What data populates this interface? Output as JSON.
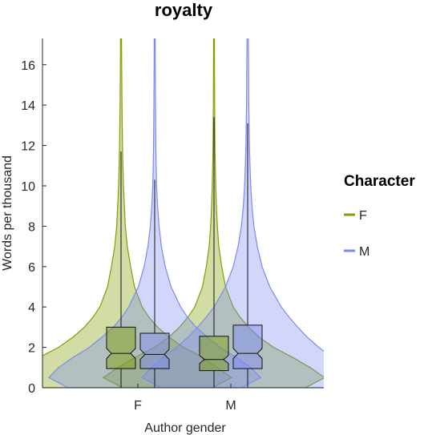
{
  "chart_data": {
    "type": "violin",
    "title": "royalty",
    "xlabel": "Author gender",
    "ylabel": "Words per thousand",
    "ylim": [
      0,
      17.3
    ],
    "yticks": [
      0,
      2,
      4,
      6,
      8,
      10,
      12,
      14,
      16
    ],
    "categories": [
      "F",
      "M"
    ],
    "legend": {
      "title": "Character",
      "placement": "right",
      "entries": [
        "F",
        "M"
      ]
    },
    "colors": {
      "F": "#7f9f00",
      "M": "#7b89f2"
    },
    "grid": false,
    "series": [
      {
        "name": "F",
        "color": "#7f9f00",
        "groups": [
          {
            "category": "F",
            "box": {
              "q1": 0.95,
              "median": 1.7,
              "q3": 3.0,
              "notch_low": 1.45,
              "notch_high": 1.95,
              "whisker_low": 0,
              "whisker_high": 11.7
            },
            "density": [
              [
                0,
                0.95
              ],
              [
                0.5,
                1.15
              ],
              [
                1,
                1.0
              ],
              [
                1.5,
                0.85
              ],
              [
                2,
                0.65
              ],
              [
                2.5,
                0.5
              ],
              [
                3,
                0.38
              ],
              [
                3.5,
                0.29
              ],
              [
                4,
                0.22
              ],
              [
                5,
                0.14
              ],
              [
                6,
                0.1
              ],
              [
                7,
                0.065
              ],
              [
                8,
                0.045
              ],
              [
                9,
                0.035
              ],
              [
                10,
                0.025
              ],
              [
                11,
                0.02
              ],
              [
                12,
                0.015
              ],
              [
                14,
                0.01
              ],
              [
                16,
                0.007
              ],
              [
                17.3,
                0.005
              ]
            ]
          },
          {
            "category": "M",
            "box": {
              "q1": 0.85,
              "median": 1.4,
              "q3": 2.55,
              "notch_low": 1.2,
              "notch_high": 1.6,
              "whisker_low": 0,
              "whisker_high": 13.4
            },
            "density": [
              [
                0,
                0.95
              ],
              [
                0.5,
                1.15
              ],
              [
                1,
                1.0
              ],
              [
                1.5,
                0.82
              ],
              [
                2,
                0.62
              ],
              [
                2.5,
                0.47
              ],
              [
                3,
                0.36
              ],
              [
                3.5,
                0.27
              ],
              [
                4,
                0.2
              ],
              [
                5,
                0.12
              ],
              [
                6,
                0.08
              ],
              [
                7,
                0.05
              ],
              [
                8,
                0.035
              ],
              [
                9,
                0.025
              ],
              [
                10,
                0.018
              ],
              [
                11,
                0.013
              ],
              [
                12,
                0.01
              ],
              [
                14,
                0.007
              ],
              [
                16,
                0.005
              ],
              [
                17.3,
                0.004
              ]
            ]
          }
        ]
      },
      {
        "name": "M",
        "color": "#7b89f2",
        "groups": [
          {
            "category": "F",
            "box": {
              "q1": 0.95,
              "median": 1.65,
              "q3": 2.7,
              "notch_low": 1.4,
              "notch_high": 1.9,
              "whisker_low": 0,
              "whisker_high": 10.3
            },
            "density": [
              [
                0,
                0.9
              ],
              [
                0.5,
                1.1
              ],
              [
                1,
                1.0
              ],
              [
                1.5,
                0.85
              ],
              [
                2,
                0.68
              ],
              [
                2.5,
                0.55
              ],
              [
                3,
                0.43
              ],
              [
                3.5,
                0.34
              ],
              [
                4,
                0.27
              ],
              [
                5,
                0.17
              ],
              [
                6,
                0.11
              ],
              [
                7,
                0.07
              ],
              [
                8,
                0.045
              ],
              [
                9,
                0.03
              ],
              [
                10,
                0.02
              ],
              [
                11,
                0.015
              ],
              [
                12,
                0.012
              ],
              [
                14,
                0.008
              ],
              [
                16,
                0.006
              ],
              [
                17.3,
                0.005
              ]
            ]
          },
          {
            "category": "M",
            "box": {
              "q1": 0.95,
              "median": 1.7,
              "q3": 3.1,
              "notch_low": 1.45,
              "notch_high": 1.95,
              "whisker_low": 0,
              "whisker_high": 13.1
            },
            "density": [
              [
                0,
                0.9
              ],
              [
                0.5,
                1.1
              ],
              [
                1,
                1.0
              ],
              [
                1.5,
                0.88
              ],
              [
                2,
                0.74
              ],
              [
                2.5,
                0.62
              ],
              [
                3,
                0.52
              ],
              [
                3.5,
                0.43
              ],
              [
                4,
                0.35
              ],
              [
                5,
                0.23
              ],
              [
                6,
                0.15
              ],
              [
                7,
                0.1
              ],
              [
                8,
                0.065
              ],
              [
                9,
                0.045
              ],
              [
                10,
                0.032
              ],
              [
                11,
                0.024
              ],
              [
                12,
                0.018
              ],
              [
                14,
                0.012
              ],
              [
                16,
                0.009
              ],
              [
                17.3,
                0.007
              ]
            ]
          }
        ]
      }
    ]
  }
}
